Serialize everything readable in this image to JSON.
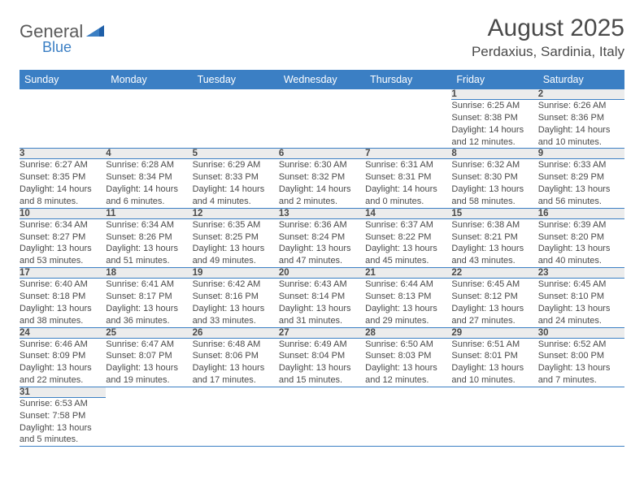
{
  "logo": {
    "text_top": "General",
    "text_bottom": "Blue"
  },
  "header": {
    "title": "August 2025",
    "location": "Perdaxius, Sardinia, Italy"
  },
  "colors": {
    "header_bg": "#3b7fc4",
    "header_text": "#ffffff",
    "daynum_bg": "#ececec",
    "row_border": "#3b7fc4",
    "body_text": "#4a4a4a",
    "logo_blue": "#3b7fc4"
  },
  "columns": [
    "Sunday",
    "Monday",
    "Tuesday",
    "Wednesday",
    "Thursday",
    "Friday",
    "Saturday"
  ],
  "weeks": [
    [
      null,
      null,
      null,
      null,
      null,
      {
        "day": "1",
        "sunrise": "Sunrise: 6:25 AM",
        "sunset": "Sunset: 8:38 PM",
        "daylight1": "Daylight: 14 hours",
        "daylight2": "and 12 minutes."
      },
      {
        "day": "2",
        "sunrise": "Sunrise: 6:26 AM",
        "sunset": "Sunset: 8:36 PM",
        "daylight1": "Daylight: 14 hours",
        "daylight2": "and 10 minutes."
      }
    ],
    [
      {
        "day": "3",
        "sunrise": "Sunrise: 6:27 AM",
        "sunset": "Sunset: 8:35 PM",
        "daylight1": "Daylight: 14 hours",
        "daylight2": "and 8 minutes."
      },
      {
        "day": "4",
        "sunrise": "Sunrise: 6:28 AM",
        "sunset": "Sunset: 8:34 PM",
        "daylight1": "Daylight: 14 hours",
        "daylight2": "and 6 minutes."
      },
      {
        "day": "5",
        "sunrise": "Sunrise: 6:29 AM",
        "sunset": "Sunset: 8:33 PM",
        "daylight1": "Daylight: 14 hours",
        "daylight2": "and 4 minutes."
      },
      {
        "day": "6",
        "sunrise": "Sunrise: 6:30 AM",
        "sunset": "Sunset: 8:32 PM",
        "daylight1": "Daylight: 14 hours",
        "daylight2": "and 2 minutes."
      },
      {
        "day": "7",
        "sunrise": "Sunrise: 6:31 AM",
        "sunset": "Sunset: 8:31 PM",
        "daylight1": "Daylight: 14 hours",
        "daylight2": "and 0 minutes."
      },
      {
        "day": "8",
        "sunrise": "Sunrise: 6:32 AM",
        "sunset": "Sunset: 8:30 PM",
        "daylight1": "Daylight: 13 hours",
        "daylight2": "and 58 minutes."
      },
      {
        "day": "9",
        "sunrise": "Sunrise: 6:33 AM",
        "sunset": "Sunset: 8:29 PM",
        "daylight1": "Daylight: 13 hours",
        "daylight2": "and 56 minutes."
      }
    ],
    [
      {
        "day": "10",
        "sunrise": "Sunrise: 6:34 AM",
        "sunset": "Sunset: 8:27 PM",
        "daylight1": "Daylight: 13 hours",
        "daylight2": "and 53 minutes."
      },
      {
        "day": "11",
        "sunrise": "Sunrise: 6:34 AM",
        "sunset": "Sunset: 8:26 PM",
        "daylight1": "Daylight: 13 hours",
        "daylight2": "and 51 minutes."
      },
      {
        "day": "12",
        "sunrise": "Sunrise: 6:35 AM",
        "sunset": "Sunset: 8:25 PM",
        "daylight1": "Daylight: 13 hours",
        "daylight2": "and 49 minutes."
      },
      {
        "day": "13",
        "sunrise": "Sunrise: 6:36 AM",
        "sunset": "Sunset: 8:24 PM",
        "daylight1": "Daylight: 13 hours",
        "daylight2": "and 47 minutes."
      },
      {
        "day": "14",
        "sunrise": "Sunrise: 6:37 AM",
        "sunset": "Sunset: 8:22 PM",
        "daylight1": "Daylight: 13 hours",
        "daylight2": "and 45 minutes."
      },
      {
        "day": "15",
        "sunrise": "Sunrise: 6:38 AM",
        "sunset": "Sunset: 8:21 PM",
        "daylight1": "Daylight: 13 hours",
        "daylight2": "and 43 minutes."
      },
      {
        "day": "16",
        "sunrise": "Sunrise: 6:39 AM",
        "sunset": "Sunset: 8:20 PM",
        "daylight1": "Daylight: 13 hours",
        "daylight2": "and 40 minutes."
      }
    ],
    [
      {
        "day": "17",
        "sunrise": "Sunrise: 6:40 AM",
        "sunset": "Sunset: 8:18 PM",
        "daylight1": "Daylight: 13 hours",
        "daylight2": "and 38 minutes."
      },
      {
        "day": "18",
        "sunrise": "Sunrise: 6:41 AM",
        "sunset": "Sunset: 8:17 PM",
        "daylight1": "Daylight: 13 hours",
        "daylight2": "and 36 minutes."
      },
      {
        "day": "19",
        "sunrise": "Sunrise: 6:42 AM",
        "sunset": "Sunset: 8:16 PM",
        "daylight1": "Daylight: 13 hours",
        "daylight2": "and 33 minutes."
      },
      {
        "day": "20",
        "sunrise": "Sunrise: 6:43 AM",
        "sunset": "Sunset: 8:14 PM",
        "daylight1": "Daylight: 13 hours",
        "daylight2": "and 31 minutes."
      },
      {
        "day": "21",
        "sunrise": "Sunrise: 6:44 AM",
        "sunset": "Sunset: 8:13 PM",
        "daylight1": "Daylight: 13 hours",
        "daylight2": "and 29 minutes."
      },
      {
        "day": "22",
        "sunrise": "Sunrise: 6:45 AM",
        "sunset": "Sunset: 8:12 PM",
        "daylight1": "Daylight: 13 hours",
        "daylight2": "and 27 minutes."
      },
      {
        "day": "23",
        "sunrise": "Sunrise: 6:45 AM",
        "sunset": "Sunset: 8:10 PM",
        "daylight1": "Daylight: 13 hours",
        "daylight2": "and 24 minutes."
      }
    ],
    [
      {
        "day": "24",
        "sunrise": "Sunrise: 6:46 AM",
        "sunset": "Sunset: 8:09 PM",
        "daylight1": "Daylight: 13 hours",
        "daylight2": "and 22 minutes."
      },
      {
        "day": "25",
        "sunrise": "Sunrise: 6:47 AM",
        "sunset": "Sunset: 8:07 PM",
        "daylight1": "Daylight: 13 hours",
        "daylight2": "and 19 minutes."
      },
      {
        "day": "26",
        "sunrise": "Sunrise: 6:48 AM",
        "sunset": "Sunset: 8:06 PM",
        "daylight1": "Daylight: 13 hours",
        "daylight2": "and 17 minutes."
      },
      {
        "day": "27",
        "sunrise": "Sunrise: 6:49 AM",
        "sunset": "Sunset: 8:04 PM",
        "daylight1": "Daylight: 13 hours",
        "daylight2": "and 15 minutes."
      },
      {
        "day": "28",
        "sunrise": "Sunrise: 6:50 AM",
        "sunset": "Sunset: 8:03 PM",
        "daylight1": "Daylight: 13 hours",
        "daylight2": "and 12 minutes."
      },
      {
        "day": "29",
        "sunrise": "Sunrise: 6:51 AM",
        "sunset": "Sunset: 8:01 PM",
        "daylight1": "Daylight: 13 hours",
        "daylight2": "and 10 minutes."
      },
      {
        "day": "30",
        "sunrise": "Sunrise: 6:52 AM",
        "sunset": "Sunset: 8:00 PM",
        "daylight1": "Daylight: 13 hours",
        "daylight2": "and 7 minutes."
      }
    ],
    [
      {
        "day": "31",
        "sunrise": "Sunrise: 6:53 AM",
        "sunset": "Sunset: 7:58 PM",
        "daylight1": "Daylight: 13 hours",
        "daylight2": "and 5 minutes."
      },
      null,
      null,
      null,
      null,
      null,
      null
    ]
  ]
}
